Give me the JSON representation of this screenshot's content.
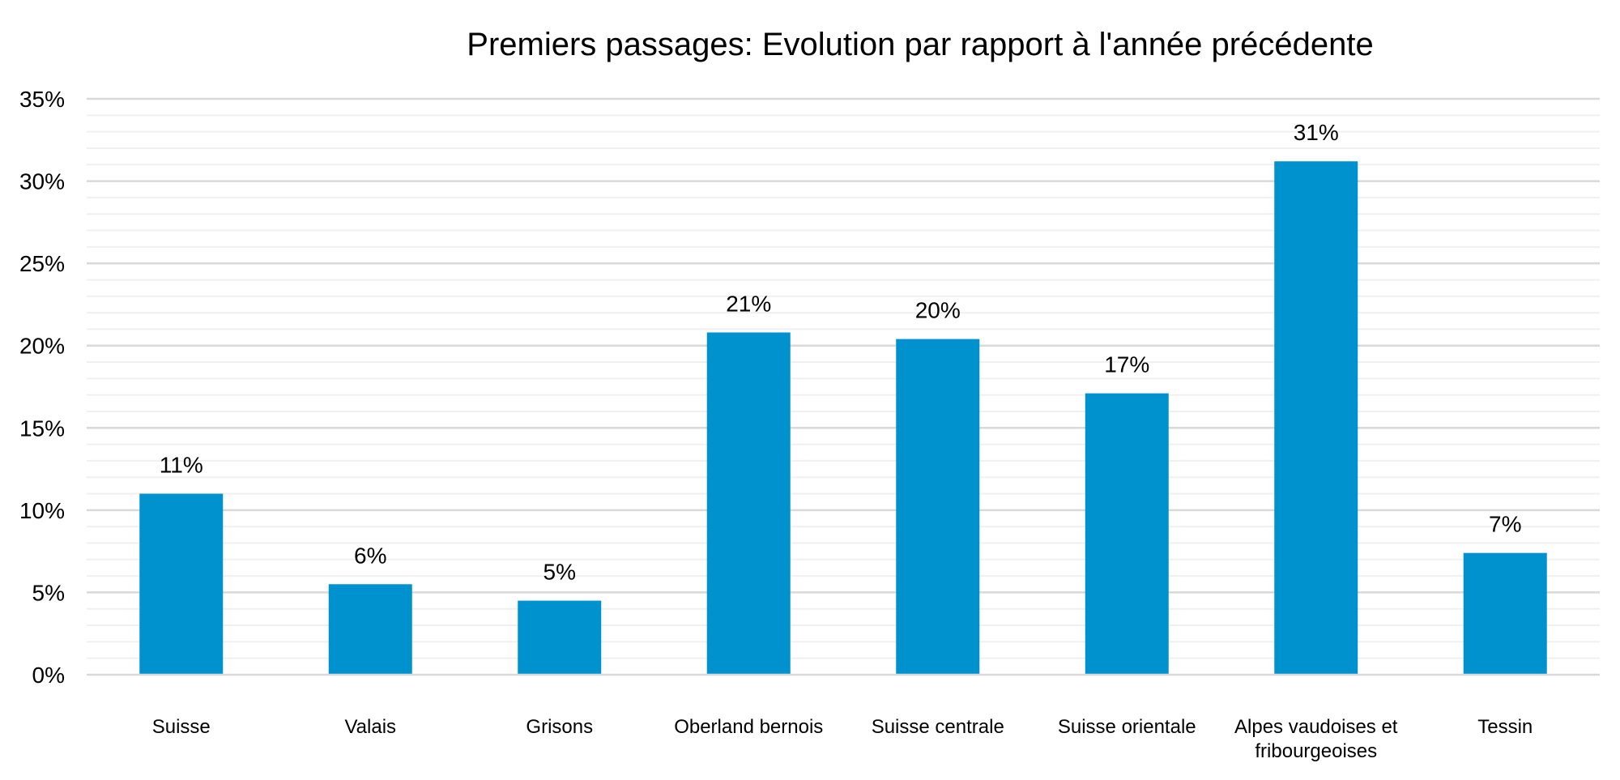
{
  "chart_data": {
    "type": "bar",
    "title": "Premiers passages: Evolution par rapport à l'année précédente",
    "xlabel": "",
    "ylabel": "",
    "categories": [
      [
        "Suisse"
      ],
      [
        "Valais"
      ],
      [
        "Grisons"
      ],
      [
        "Oberland bernois"
      ],
      [
        "Suisse centrale"
      ],
      [
        "Suisse orientale"
      ],
      [
        "Alpes vaudoises et",
        "fribourgeoises"
      ],
      [
        "Tessin"
      ]
    ],
    "values": [
      0.11,
      0.055,
      0.045,
      0.208,
      0.204,
      0.171,
      0.312,
      0.074
    ],
    "data_labels": [
      "11%",
      "6%",
      "5%",
      "21%",
      "20%",
      "17%",
      "31%",
      "7%"
    ],
    "ylim": [
      0,
      0.35
    ],
    "yticks": [
      0,
      0.05,
      0.1,
      0.15,
      0.2,
      0.25,
      0.3,
      0.35
    ],
    "ytick_labels": [
      "0%",
      "5%",
      "10%",
      "15%",
      "20%",
      "25%",
      "30%",
      "35%"
    ],
    "minor_step": 0.01,
    "grid": true,
    "legend": "none",
    "colors": {
      "bar": "#0092CF",
      "major_grid": "#D9D9D9",
      "minor_grid": "#F0F0F0",
      "axis": "#D9D9D9",
      "text": "#000000"
    }
  }
}
